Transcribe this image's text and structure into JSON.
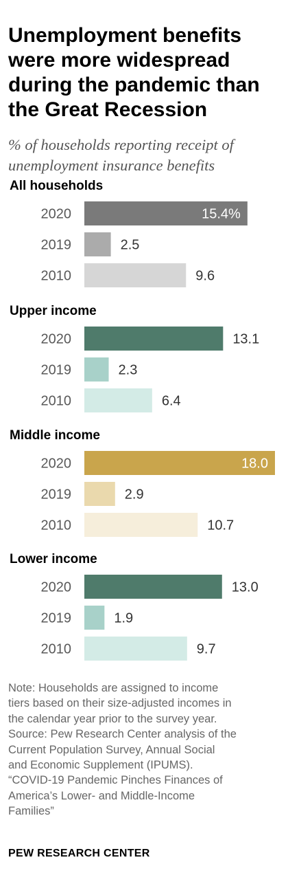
{
  "title": "Unemployment benefits were more widespread during the pandemic than the Great Recession",
  "subtitle": "% of households reporting receipt of unemployment insurance benefits",
  "chart_data": {
    "type": "bar",
    "orientation": "horizontal",
    "title": "Unemployment benefits were more widespread during the pandemic than the Great Recession",
    "subtitle": "% of households reporting receipt of unemployment insurance benefits",
    "categories": [
      "2020",
      "2019",
      "2010"
    ],
    "xlim": [
      0,
      18
    ],
    "grid": false,
    "groups": [
      {
        "name": "All households",
        "values": [
          15.4,
          2.5,
          9.6
        ],
        "labels": [
          "15.4%",
          "2.5",
          "9.6"
        ],
        "colors": [
          "#7a7a7a",
          "#ababab",
          "#d6d6d6"
        ]
      },
      {
        "name": "Upper income",
        "values": [
          13.1,
          2.3,
          6.4
        ],
        "labels": [
          "13.1",
          "2.3",
          "6.4"
        ],
        "colors": [
          "#4f7b6b",
          "#a8d1c9",
          "#d3ebe6"
        ]
      },
      {
        "name": "Middle income",
        "values": [
          18.0,
          2.9,
          10.7
        ],
        "labels": [
          "18.0",
          "2.9",
          "10.7"
        ],
        "colors": [
          "#c9a54c",
          "#ead9ad",
          "#f6eedb"
        ]
      },
      {
        "name": "Lower income",
        "values": [
          13.0,
          1.9,
          9.7
        ],
        "labels": [
          "13.0",
          "1.9",
          "9.7"
        ],
        "colors": [
          "#4f7b6b",
          "#a8d1c9",
          "#d3ebe6"
        ]
      }
    ]
  },
  "note_lines": [
    "Note: Households are assigned to income",
    "tiers based on their size-adjusted incomes in",
    "the calendar year prior to the survey year.",
    "Source: Pew Research Center analysis of the",
    "Current Population Survey, Annual Social",
    "and Economic Supplement (IPUMS).",
    "“COVID-19 Pandemic Pinches Finances of",
    "America’s Lower- and Middle-Income",
    "Families”"
  ],
  "brand": "PEW RESEARCH CENTER"
}
